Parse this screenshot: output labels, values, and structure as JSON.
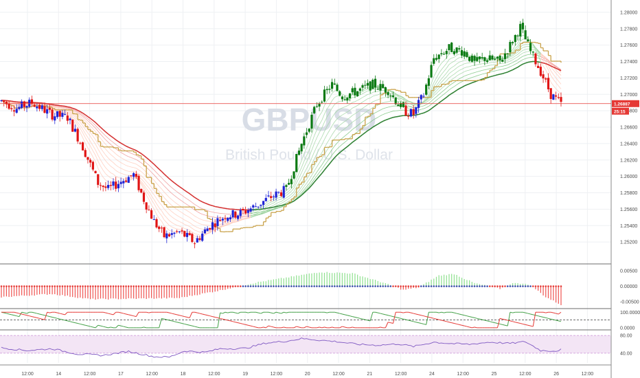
{
  "chart_data": {
    "type": "candlestick",
    "watermark": {
      "symbol": "GBPUSD",
      "description": "British Pound / U.S. Dollar"
    },
    "x_tick_labels": [
      "12:00",
      "14",
      "12:00",
      "17",
      "12:00",
      "18",
      "12:00",
      "19",
      "12:00",
      "20",
      "12:00",
      "21",
      "12:00",
      "24",
      "12:00",
      "25",
      "12:00",
      "26",
      "12:00"
    ],
    "y_ticks": [
      1.252,
      1.254,
      1.256,
      1.258,
      1.26,
      1.262,
      1.264,
      1.266,
      1.268,
      1.27,
      1.272,
      1.274,
      1.276,
      1.278,
      1.28
    ],
    "y_tick_labels": [
      "1.25200",
      "1.25400",
      "1.25600",
      "1.25800",
      "1.26000",
      "1.26200",
      "1.26400",
      "1.26600",
      "1.26800",
      "1.27000",
      "1.27200",
      "1.27400",
      "1.27600",
      "1.27800",
      "1.28000"
    ],
    "ylim": [
      1.2495,
      1.2815
    ],
    "last_price": 1.26887,
    "last_price_label": "1.26887",
    "countdown_label": "25:15",
    "price_anchors": [
      [
        0,
        1.2692
      ],
      [
        6,
        1.2683
      ],
      [
        12,
        1.269
      ],
      [
        20,
        1.2675
      ],
      [
        26,
        1.2672
      ],
      [
        32,
        1.2636
      ],
      [
        38,
        1.2592
      ],
      [
        42,
        1.2584
      ],
      [
        48,
        1.2596
      ],
      [
        52,
        1.2602
      ],
      [
        56,
        1.2572
      ],
      [
        60,
        1.2545
      ],
      [
        64,
        1.2527
      ],
      [
        70,
        1.2532
      ],
      [
        76,
        1.252
      ],
      [
        82,
        1.254
      ],
      [
        88,
        1.2552
      ],
      [
        94,
        1.2555
      ],
      [
        100,
        1.2564
      ],
      [
        106,
        1.2575
      ],
      [
        112,
        1.2584
      ],
      [
        118,
        1.264
      ],
      [
        124,
        1.2688
      ],
      [
        130,
        1.2712
      ],
      [
        134,
        1.2698
      ],
      [
        140,
        1.2704
      ],
      [
        146,
        1.2712
      ],
      [
        152,
        1.2705
      ],
      [
        158,
        1.268
      ],
      [
        162,
        1.2676
      ],
      [
        166,
        1.27
      ],
      [
        170,
        1.2744
      ],
      [
        176,
        1.2756
      ],
      [
        182,
        1.2752
      ],
      [
        186,
        1.2738
      ],
      [
        190,
        1.2744
      ],
      [
        196,
        1.274
      ],
      [
        200,
        1.276
      ],
      [
        204,
        1.2782
      ],
      [
        208,
        1.2752
      ],
      [
        212,
        1.2728
      ],
      [
        216,
        1.27
      ],
      [
        220,
        1.2688
      ]
    ],
    "candle_count": 221,
    "panes": [
      {
        "name": "price",
        "ylim": [
          1.2495,
          1.2815
        ]
      },
      {
        "name": "oscillator",
        "y_tick_labels": [
          "0.00500",
          "0.00000",
          "-0.00500"
        ],
        "ylim": [
          -0.0068,
          0.0068
        ],
        "anchors": [
          [
            0,
            -0.0035
          ],
          [
            20,
            -0.0025
          ],
          [
            35,
            -0.0042
          ],
          [
            55,
            -0.004
          ],
          [
            70,
            -0.0038
          ],
          [
            85,
            -0.0015
          ],
          [
            100,
            0.0012
          ],
          [
            112,
            0.0028
          ],
          [
            125,
            0.0046
          ],
          [
            138,
            0.0042
          ],
          [
            150,
            0.0012
          ],
          [
            158,
            -0.0012
          ],
          [
            164,
            -0.0004
          ],
          [
            172,
            0.0035
          ],
          [
            178,
            0.004
          ],
          [
            186,
            0.001
          ],
          [
            196,
            -0.0008
          ],
          [
            202,
            0.0012
          ],
          [
            208,
            0.0004
          ],
          [
            214,
            -0.0035
          ],
          [
            220,
            -0.006
          ]
        ]
      },
      {
        "name": "aroon",
        "y_tick_labels": [
          "100.0000",
          "0.0000"
        ],
        "ylim": [
          -5,
          110
        ]
      },
      {
        "name": "rsi",
        "y_tick_labels": [
          "80.00",
          "40.00"
        ],
        "ylim": [
          18,
          88
        ],
        "band": [
          40,
          80
        ],
        "anchors": [
          [
            0,
            52
          ],
          [
            10,
            46
          ],
          [
            20,
            50
          ],
          [
            30,
            38
          ],
          [
            40,
            35
          ],
          [
            50,
            44
          ],
          [
            60,
            32
          ],
          [
            66,
            31
          ],
          [
            72,
            45
          ],
          [
            80,
            42
          ],
          [
            86,
            50
          ],
          [
            96,
            51
          ],
          [
            104,
            63
          ],
          [
            112,
            67
          ],
          [
            118,
            73
          ],
          [
            124,
            70
          ],
          [
            132,
            66
          ],
          [
            140,
            60
          ],
          [
            148,
            58
          ],
          [
            156,
            61
          ],
          [
            162,
            55
          ],
          [
            170,
            65
          ],
          [
            176,
            62
          ],
          [
            184,
            60
          ],
          [
            192,
            65
          ],
          [
            200,
            62
          ],
          [
            206,
            66
          ],
          [
            212,
            46
          ],
          [
            218,
            45
          ],
          [
            220,
            48
          ]
        ]
      }
    ]
  }
}
